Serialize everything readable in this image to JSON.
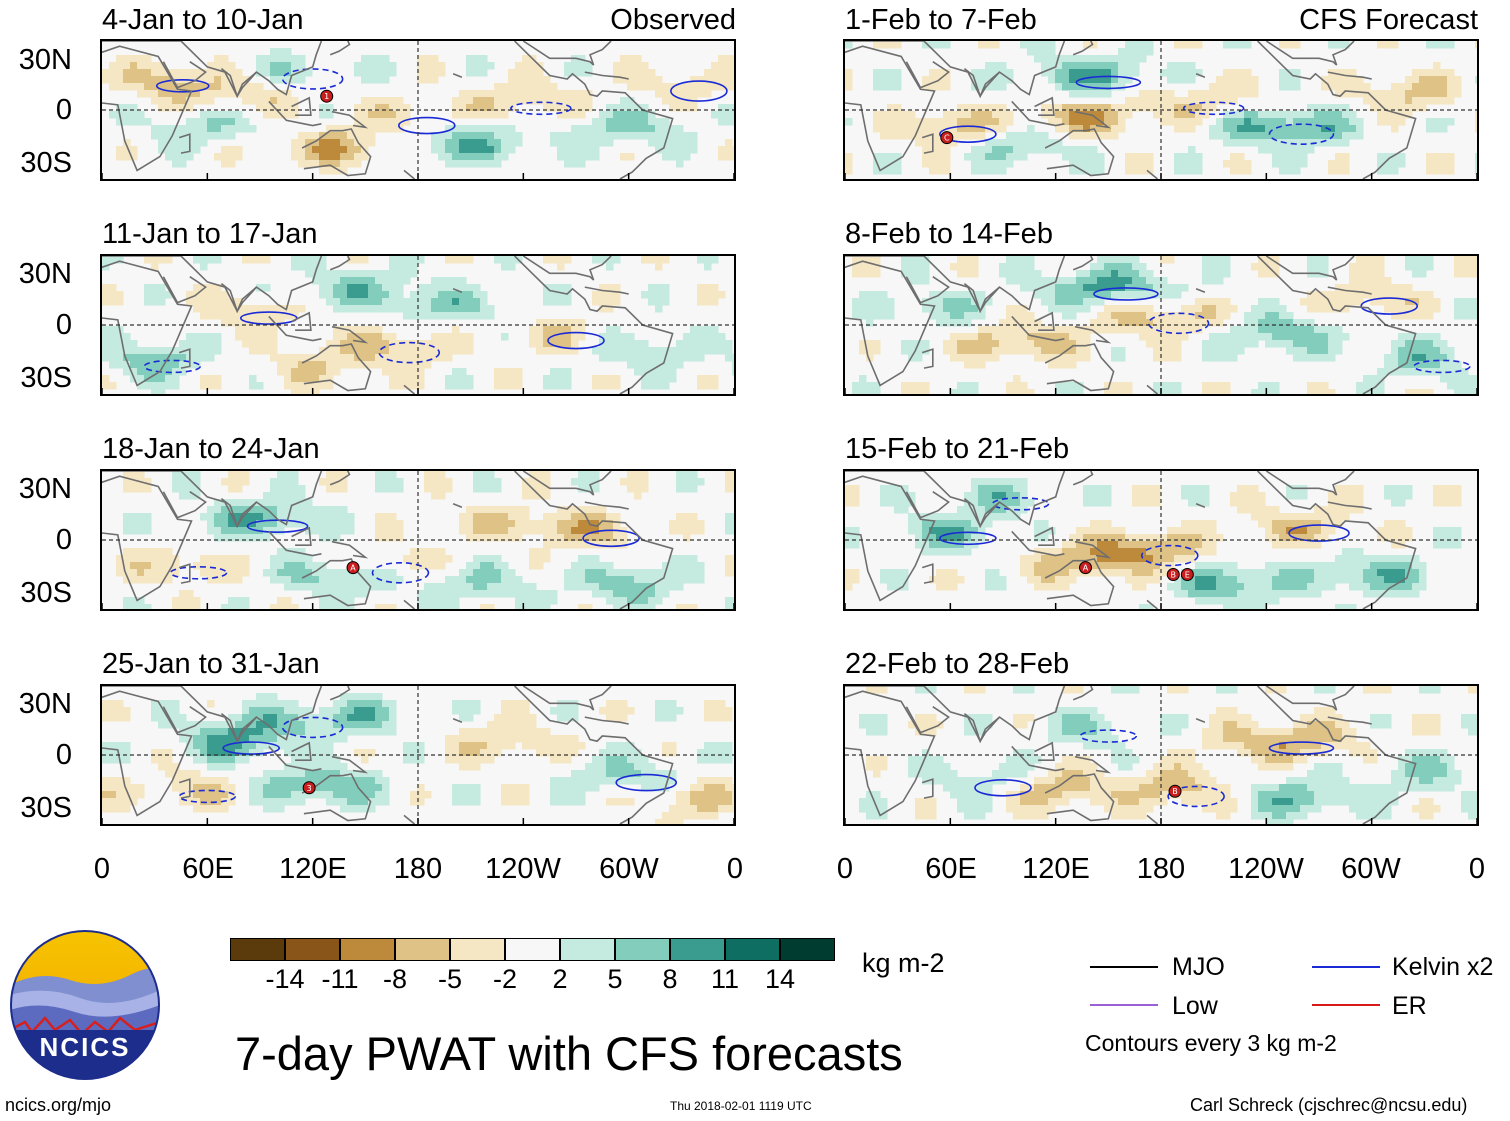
{
  "header": {
    "observed_label": "Observed",
    "forecast_label": "CFS Forecast"
  },
  "observed_panels": [
    {
      "title": "4-Jan to 10-Jan",
      "markers": [
        {
          "lon": 128,
          "lat": 8,
          "id": "1"
        }
      ]
    },
    {
      "title": "11-Jan to 17-Jan",
      "markers": []
    },
    {
      "title": "18-Jan to 24-Jan",
      "markers": [
        {
          "lon": 143,
          "lat": -16,
          "id": "A"
        }
      ]
    },
    {
      "title": "25-Jan to 31-Jan",
      "markers": [
        {
          "lon": 118,
          "lat": -19,
          "id": "3"
        }
      ]
    }
  ],
  "forecast_panels": [
    {
      "title": "1-Feb to 7-Feb",
      "markers": [
        {
          "lon": 58,
          "lat": -16,
          "id": "C"
        }
      ]
    },
    {
      "title": "8-Feb to 14-Feb",
      "markers": []
    },
    {
      "title": "15-Feb to 21-Feb",
      "markers": [
        {
          "lon": 137,
          "lat": -16,
          "id": "A"
        },
        {
          "lon": 187,
          "lat": -20,
          "id": "B"
        },
        {
          "lon": 195,
          "lat": -20,
          "id": "E"
        }
      ]
    },
    {
      "title": "22-Feb to 28-Feb",
      "markers": [
        {
          "lon": 188,
          "lat": -21,
          "id": "B"
        }
      ]
    }
  ],
  "axes": {
    "lat_labels": [
      "30N",
      "0",
      "30S"
    ],
    "lon_labels": [
      "0",
      "60E",
      "120E",
      "180",
      "120W",
      "60W",
      "0"
    ]
  },
  "colorbar": {
    "colors": [
      "#5b3a0c",
      "#8a5518",
      "#bd8a3c",
      "#dfc285",
      "#f6e7c4",
      "#f7f7f7",
      "#c5eae0",
      "#82cdbc",
      "#3a9c8e",
      "#0f6e62",
      "#003c30"
    ],
    "ticks": [
      "-14",
      "-11",
      "-8",
      "-5",
      "-2",
      "2",
      "5",
      "8",
      "11",
      "14"
    ],
    "units": "kg m-2"
  },
  "title": "7-day PWAT with CFS forecasts",
  "legend": {
    "items": [
      {
        "label": "MJO",
        "color": "#000000"
      },
      {
        "label": "Kelvin x2",
        "color": "#1a2bd6"
      },
      {
        "label": "Low",
        "color": "#9b5fd6"
      },
      {
        "label": "ER",
        "color": "#d61a1a"
      }
    ],
    "note": "Contours every 3 kg m-2"
  },
  "footer": {
    "logo_text": "NCICS",
    "url": "ncics.org/mjo",
    "timestamp": "Thu 2018-02-01 1119 UTC",
    "credit": "Carl Schreck (cjschrec@ncsu.edu)"
  },
  "blobs": [
    [
      [
        36,
        18,
        4,
        -6,
        0.9
      ],
      [
        78,
        10,
        7,
        -5,
        0.6
      ],
      [
        110,
        22,
        6,
        4,
        0.6
      ],
      [
        140,
        -22,
        7,
        -8,
        0.9
      ],
      [
        175,
        -5,
        5,
        -4,
        0.4
      ],
      [
        200,
        -20,
        8,
        8,
        0.8
      ],
      [
        240,
        5,
        6,
        -5,
        0.5
      ],
      [
        300,
        -10,
        6,
        6,
        0.5
      ],
      [
        330,
        15,
        5,
        -4,
        0.4
      ],
      [
        60,
        -10,
        6,
        5,
        0.5
      ]
    ],
    [
      [
        85,
        8,
        5,
        -5,
        0.5
      ],
      [
        145,
        20,
        7,
        6,
        0.7
      ],
      [
        165,
        -12,
        6,
        -6,
        0.6
      ],
      [
        200,
        10,
        6,
        5,
        0.5
      ],
      [
        260,
        -5,
        5,
        -4,
        0.4
      ],
      [
        310,
        -15,
        5,
        5,
        0.6
      ],
      [
        30,
        -20,
        5,
        7,
        0.6
      ],
      [
        120,
        -25,
        6,
        -4,
        0.5
      ]
    ],
    [
      [
        90,
        12,
        6,
        8,
        0.9
      ],
      [
        140,
        -20,
        6,
        9,
        1.0
      ],
      [
        160,
        -15,
        5,
        -7,
        0.7
      ],
      [
        230,
        10,
        6,
        -5,
        0.5
      ],
      [
        280,
        5,
        5,
        -6,
        0.6
      ],
      [
        300,
        -25,
        5,
        7,
        0.6
      ],
      [
        45,
        -15,
        5,
        -5,
        0.6
      ],
      [
        215,
        -25,
        6,
        5,
        0.5
      ]
    ],
    [
      [
        75,
        8,
        5,
        9,
        0.8
      ],
      [
        125,
        -18,
        6,
        8,
        0.9
      ],
      [
        110,
        20,
        6,
        5,
        0.5
      ],
      [
        230,
        8,
        6,
        -5,
        0.5
      ],
      [
        300,
        -12,
        6,
        6,
        0.6
      ],
      [
        335,
        -25,
        5,
        -6,
        0.6
      ],
      [
        50,
        -20,
        5,
        -5,
        0.5
      ],
      [
        150,
        22,
        5,
        5,
        0.5
      ]
    ],
    [
      [
        140,
        20,
        7,
        8,
        0.9
      ],
      [
        135,
        -5,
        6,
        -8,
        0.8
      ],
      [
        250,
        -10,
        7,
        9,
        0.9
      ],
      [
        320,
        10,
        5,
        -6,
        0.5
      ],
      [
        60,
        -10,
        5,
        -7,
        0.7
      ],
      [
        100,
        -20,
        6,
        6,
        0.6
      ],
      [
        200,
        5,
        6,
        -5,
        0.5
      ]
    ],
    [
      [
        150,
        22,
        7,
        9,
        1.0
      ],
      [
        100,
        -10,
        6,
        -7,
        0.7
      ],
      [
        180,
        5,
        6,
        -7,
        0.8
      ],
      [
        250,
        -5,
        6,
        7,
        0.7
      ],
      [
        300,
        15,
        5,
        -5,
        0.5
      ],
      [
        50,
        10,
        5,
        5,
        0.5
      ],
      [
        330,
        -20,
        5,
        6,
        0.5
      ]
    ],
    [
      [
        60,
        5,
        5,
        7,
        0.6
      ],
      [
        135,
        -12,
        6,
        -7,
        0.8
      ],
      [
        175,
        -5,
        5,
        -8,
        0.8
      ],
      [
        220,
        -25,
        6,
        8,
        0.8
      ],
      [
        260,
        8,
        6,
        -6,
        0.5
      ],
      [
        300,
        -20,
        6,
        7,
        0.7
      ],
      [
        90,
        25,
        5,
        5,
        0.5
      ]
    ],
    [
      [
        250,
        8,
        7,
        -8,
        0.9
      ],
      [
        120,
        -20,
        6,
        -7,
        0.7
      ],
      [
        190,
        -20,
        5,
        -7,
        0.7
      ],
      [
        260,
        -25,
        6,
        7,
        0.7
      ],
      [
        80,
        -15,
        5,
        5,
        0.6
      ],
      [
        330,
        -10,
        5,
        5,
        0.5
      ],
      [
        140,
        15,
        5,
        5,
        0.5
      ]
    ]
  ]
}
